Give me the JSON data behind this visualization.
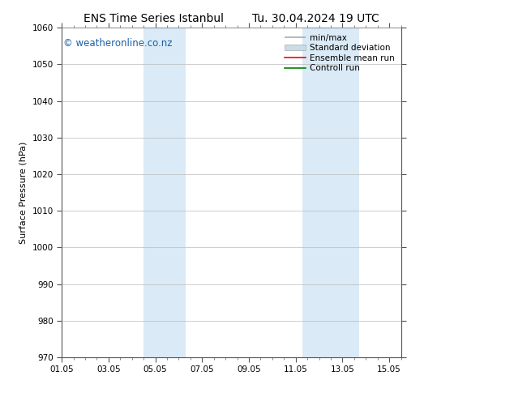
{
  "title_left": "ENS Time Series Istanbul",
  "title_right": "Tu. 30.04.2024 19 UTC",
  "ylabel": "Surface Pressure (hPa)",
  "ylim": [
    970,
    1060
  ],
  "yticks": [
    970,
    980,
    990,
    1000,
    1010,
    1020,
    1030,
    1040,
    1050,
    1060
  ],
  "xlim_start": 0.0,
  "xlim_end": 14.5,
  "xtick_labels": [
    "01.05",
    "03.05",
    "05.05",
    "07.05",
    "09.05",
    "11.05",
    "13.05",
    "15.05"
  ],
  "xtick_positions": [
    0.0,
    2.0,
    4.0,
    6.0,
    8.0,
    10.0,
    12.0,
    14.0
  ],
  "shaded_bands": [
    {
      "x_start": 3.5,
      "x_end": 5.3
    },
    {
      "x_start": 10.3,
      "x_end": 12.7
    }
  ],
  "shaded_color": "#daeaf6",
  "watermark_text": "© weatheronline.co.nz",
  "watermark_color": "#1a5fa8",
  "watermark_fontsize": 8.5,
  "legend_entries": [
    {
      "label": "min/max",
      "color": "#aaaaaa"
    },
    {
      "label": "Standard deviation",
      "color": "#c8dcea"
    },
    {
      "label": "Ensemble mean run",
      "color": "red"
    },
    {
      "label": "Controll run",
      "color": "green"
    }
  ],
  "grid_color": "#bbbbbb",
  "spine_color": "#555555",
  "background_color": "#ffffff",
  "title_fontsize": 10,
  "ylabel_fontsize": 8,
  "tick_fontsize": 7.5,
  "legend_fontsize": 7.5
}
